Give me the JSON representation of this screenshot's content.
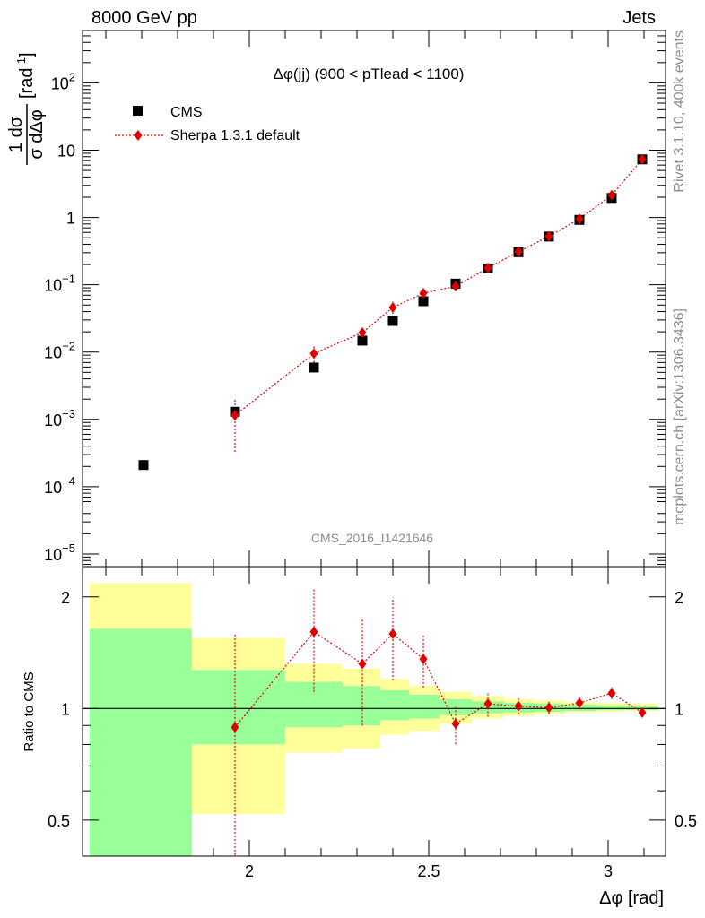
{
  "header": {
    "left": "8000 GeV pp",
    "right": "Jets"
  },
  "side_labels": {
    "rivet": "Rivet 3.1.10,  400k events",
    "mcplots": "mcplots.cern.ch [arXiv:1306.3436]"
  },
  "watermark": "CMS_2016_I1421646",
  "colors": {
    "data": "#000000",
    "mc": "#e00000",
    "band_inner": "#99ff99",
    "band_outer": "#ffff99"
  },
  "chart_data": [
    {
      "type": "scatter",
      "title": "Δφ(jj) (900 < pTlead <  1100)",
      "ylabel_frac_num": "1 dσ",
      "ylabel_frac_den": "σ dΔφ",
      "ylabel_unit": "[rad",
      "ylabel_unit_sup": "-1",
      "ylabel_unit_close": "]",
      "yscale": "log",
      "ylim": [
        6.5e-06,
        600
      ],
      "xlim": [
        1.535,
        3.16
      ],
      "ytick_labels": [
        {
          "value": 1e-05,
          "base": "10",
          "exp": "−5"
        },
        {
          "value": 0.0001,
          "base": "10",
          "exp": "−4"
        },
        {
          "value": 0.001,
          "base": "10",
          "exp": "−3"
        },
        {
          "value": 0.01,
          "base": "10",
          "exp": "−2"
        },
        {
          "value": 0.1,
          "base": "10",
          "exp": "−1"
        },
        {
          "value": 1,
          "base": "1",
          "exp": ""
        },
        {
          "value": 10,
          "base": "10",
          "exp": ""
        },
        {
          "value": 100,
          "base": "10",
          "exp": "2"
        }
      ],
      "legend": {
        "placement": "top-left",
        "entries": [
          "CMS",
          "Sherpa 1.3.1 default"
        ]
      },
      "series": [
        {
          "name": "CMS",
          "marker": "square",
          "x": [
            1.705,
            1.96,
            2.18,
            2.315,
            2.4,
            2.485,
            2.575,
            2.665,
            2.75,
            2.835,
            2.92,
            3.01,
            3.095
          ],
          "y": [
            0.00021,
            0.0013,
            0.0059,
            0.0148,
            0.029,
            0.057,
            0.104,
            0.175,
            0.305,
            0.52,
            0.92,
            1.95,
            7.3
          ]
        },
        {
          "name": "Sherpa 1.3.1 default",
          "marker": "diamond",
          "x": [
            1.96,
            2.18,
            2.315,
            2.4,
            2.485,
            2.575,
            2.665,
            2.75,
            2.835,
            2.92,
            3.01,
            3.095
          ],
          "y": [
            0.00115,
            0.0095,
            0.0195,
            0.046,
            0.075,
            0.095,
            0.178,
            0.31,
            0.525,
            0.95,
            2.15,
            7.3
          ],
          "yerr_low": [
            0.00082,
            0.0025,
            0.0045,
            0.009,
            0.011,
            0.012,
            0.016,
            0.02,
            0.03,
            0.05,
            0.12,
            0.35
          ],
          "yerr_high": [
            0.0009,
            0.0028,
            0.005,
            0.01,
            0.012,
            0.013,
            0.017,
            0.022,
            0.032,
            0.05,
            0.12,
            0.35
          ]
        }
      ]
    },
    {
      "type": "scatter",
      "ylabel": "Ratio to CMS",
      "xlabel": "Δφ [rad]",
      "yscale": "log",
      "ylim": [
        0.4,
        2.4
      ],
      "xlim": [
        1.535,
        3.16
      ],
      "xticks": [
        2,
        2.5,
        3
      ],
      "xtick_labels": [
        "2",
        "2.5",
        "3"
      ],
      "yticks": [
        0.5,
        1,
        2
      ],
      "ytick_labels": [
        "0.5",
        "1",
        "2"
      ],
      "reference_line": 1,
      "bands": {
        "edges": [
          1.555,
          1.84,
          2.1,
          2.26,
          2.365,
          2.445,
          2.53,
          2.62,
          2.71,
          2.795,
          2.88,
          2.965,
          3.055,
          3.14
        ],
        "outer_low": [
          0.3,
          0.52,
          0.76,
          0.78,
          0.85,
          0.87,
          0.91,
          0.94,
          0.955,
          0.965,
          0.975,
          0.98,
          0.985
        ],
        "outer_high": [
          2.18,
          1.55,
          1.32,
          1.28,
          1.2,
          1.15,
          1.11,
          1.08,
          1.06,
          1.05,
          1.04,
          1.035,
          1.03
        ],
        "inner_low": [
          0.3,
          0.8,
          0.89,
          0.9,
          0.93,
          0.94,
          0.96,
          0.97,
          0.975,
          0.98,
          0.985,
          0.99,
          0.99
        ],
        "inner_high": [
          1.64,
          1.27,
          1.18,
          1.15,
          1.12,
          1.09,
          1.06,
          1.045,
          1.035,
          1.03,
          1.025,
          1.02,
          1.015
        ]
      },
      "series": [
        {
          "name": "Sherpa 1.3.1 default",
          "marker": "diamond",
          "x": [
            1.96,
            2.18,
            2.315,
            2.4,
            2.485,
            2.575,
            2.665,
            2.75,
            2.835,
            2.92,
            3.01,
            3.095
          ],
          "y": [
            0.89,
            1.61,
            1.32,
            1.59,
            1.36,
            0.91,
            1.03,
            1.015,
            1.005,
            1.035,
            1.1,
            0.975
          ],
          "yerr_low": [
            0.6,
            0.5,
            0.42,
            0.4,
            0.22,
            0.11,
            0.08,
            0.05,
            0.04,
            0.04,
            0.04,
            0.03
          ],
          "yerr_high": [
            0.7,
            0.5,
            0.42,
            0.4,
            0.22,
            0.11,
            0.08,
            0.05,
            0.04,
            0.04,
            0.04,
            0.03
          ]
        }
      ]
    }
  ]
}
